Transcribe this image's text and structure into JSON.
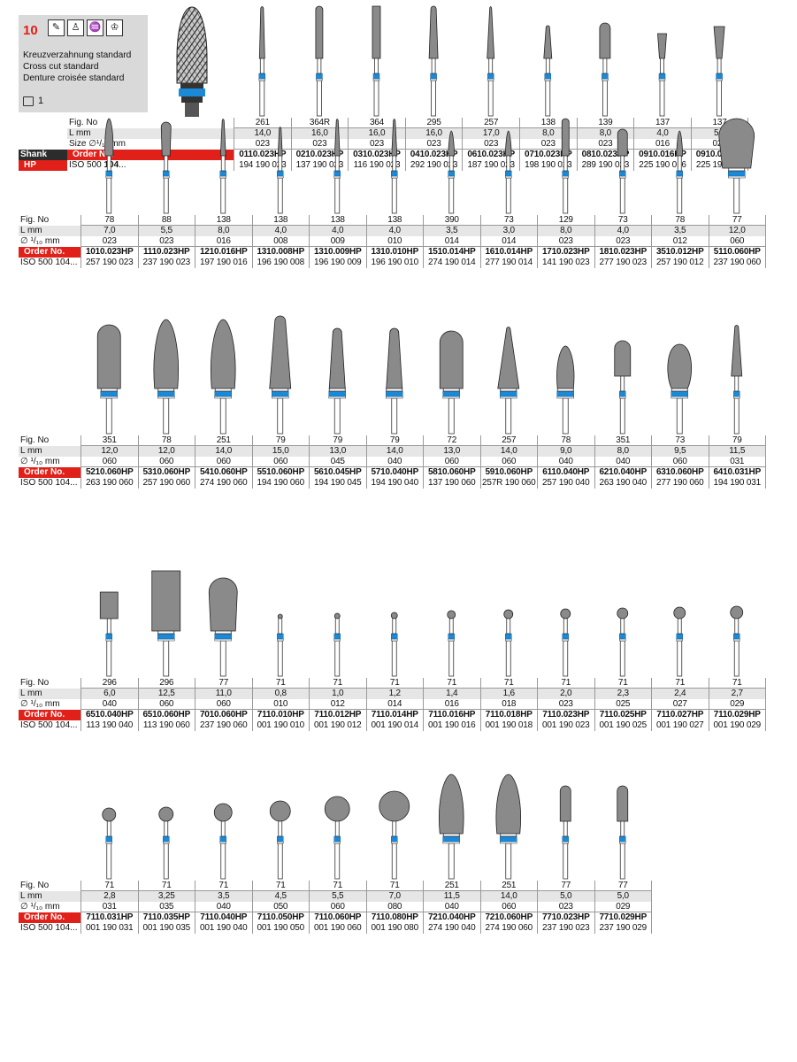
{
  "header": {
    "number": "10",
    "icons": [
      "handpiece-icon",
      "dental-lab-icon",
      "teeth-model-icon",
      "crown-icon"
    ],
    "lines": [
      "Kreuzverzahnung standard",
      "Cross cut standard",
      "Denture croisée standard"
    ],
    "pack_count": "1"
  },
  "labels": {
    "fig": "Fig. No",
    "l": "L mm",
    "size": "Size ∅¹/₁₀ mm",
    "size_short": "∅ ¹/₁₀ mm",
    "order": "Order No.",
    "iso": "ISO 500 104...",
    "iso_first_prefix": "ISO 500 ",
    "iso_first_bold": "104",
    "iso_first_suffix": "...",
    "shank": "Shank",
    "hp": "HP"
  },
  "colors": {
    "ring": "#1a8ad8",
    "order_red": "#e02019",
    "bur_fill": "#8a8a8a",
    "cell_gray": "#e6e6e6"
  },
  "rows": [
    {
      "fig": [
        "261",
        "364R",
        "364",
        "295",
        "257",
        "138",
        "139",
        "137",
        "137"
      ],
      "l": [
        "14,0",
        "16,0",
        "16,0",
        "16,0",
        "17,0",
        "8,0",
        "8,0",
        "4,0",
        "5,5"
      ],
      "size": [
        "023",
        "023",
        "023",
        "023",
        "023",
        "023",
        "023",
        "016",
        "023"
      ],
      "order": [
        "0110.023HP",
        "0210.023HP",
        "0310.023HP",
        "0410.023HP",
        "0610.023HP",
        "0710.023HP",
        "0810.023HP",
        "0910.016HP",
        "0910.023HP"
      ],
      "iso": [
        "194 190 023",
        "137 190 023",
        "116 190 023",
        "292 190 023",
        "187 190 023",
        "198 190 023",
        "289 190 023",
        "225 190 016",
        "225 190 023"
      ],
      "shapes": [
        "taper-thin",
        "cyl-round",
        "cyl",
        "taper-round",
        "taper-long",
        "taper-short",
        "bullet",
        "inv-cone",
        "inv-cone-l"
      ]
    },
    {
      "fig": [
        "78",
        "88",
        "138",
        "138",
        "138",
        "138",
        "390",
        "73",
        "129",
        "73",
        "78",
        "77"
      ],
      "l": [
        "7,0",
        "5,5",
        "8,0",
        "4,0",
        "4,0",
        "4,0",
        "3,5",
        "3,0",
        "8,0",
        "4,0",
        "3,5",
        "12,0"
      ],
      "size": [
        "023",
        "023",
        "016",
        "008",
        "009",
        "010",
        "014",
        "014",
        "023",
        "023",
        "012",
        "060"
      ],
      "order": [
        "1010.023HP",
        "1110.023HP",
        "1210.016HP",
        "1310.008HP",
        "1310.009HP",
        "1310.010HP",
        "1510.014HP",
        "1610.014HP",
        "1710.023HP",
        "1810.023HP",
        "3510.012HP",
        "5110.060HP"
      ],
      "iso": [
        "257 190 023",
        "237 190 023",
        "197 190 016",
        "196 190 008",
        "196 190 009",
        "196 190 010",
        "274 190 014",
        "277 190 014",
        "141 190 023",
        "277 190 023",
        "257 190 012",
        "237 190 060"
      ],
      "shapes": [
        "flame",
        "pear",
        "needle",
        "needle-s",
        "needle",
        "needle",
        "flame-s",
        "flame-s",
        "cyl-round",
        "egg",
        "flame-s",
        "big-pear"
      ]
    },
    {
      "fig": [
        "351",
        "78",
        "251",
        "79",
        "79",
        "79",
        "72",
        "257",
        "78",
        "351",
        "73",
        "79"
      ],
      "l": [
        "12,0",
        "12,0",
        "14,0",
        "15,0",
        "13,0",
        "14,0",
        "13,0",
        "14,0",
        "9,0",
        "8,0",
        "9,5",
        "11,5"
      ],
      "size": [
        "060",
        "060",
        "060",
        "060",
        "045",
        "040",
        "060",
        "060",
        "040",
        "040",
        "060",
        "031"
      ],
      "order": [
        "5210.060HP",
        "5310.060HP",
        "5410.060HP",
        "5510.060HP",
        "5610.045HP",
        "5710.040HP",
        "5810.060HP",
        "5910.060HP",
        "6110.040HP",
        "6210.040HP",
        "6310.060HP",
        "6410.031HP"
      ],
      "iso": [
        "263 190 060",
        "257 190 060",
        "274 190 060",
        "194 190 060",
        "194 190 045",
        "194 190 040",
        "137 190 060",
        "257R 190 060",
        "257 190 040",
        "263 190 040",
        "277 190 060",
        "194 190 031"
      ],
      "shapes": [
        "bullet-w",
        "flame-w",
        "flame-w",
        "taper-w",
        "taper-m",
        "taper-m",
        "cyl-w",
        "cone-w",
        "flame-m",
        "bullet-m",
        "oval-w",
        "taper-n"
      ]
    },
    {
      "fig": [
        "296",
        "296",
        "77",
        "71",
        "71",
        "71",
        "71",
        "71",
        "71",
        "71",
        "71",
        "71"
      ],
      "l": [
        "6,0",
        "12,5",
        "11,0",
        "0,8",
        "1,0",
        "1,2",
        "1,4",
        "1,6",
        "2,0",
        "2,3",
        "2,4",
        "2,7"
      ],
      "size": [
        "040",
        "060",
        "060",
        "010",
        "012",
        "014",
        "016",
        "018",
        "023",
        "025",
        "027",
        "029"
      ],
      "order": [
        "6510.040HP",
        "6510.060HP",
        "7010.060HP",
        "7110.010HP",
        "7110.012HP",
        "7110.014HP",
        "7110.016HP",
        "7110.018HP",
        "7110.023HP",
        "7110.025HP",
        "7110.027HP",
        "7110.029HP"
      ],
      "iso": [
        "113 190 040",
        "113 190 060",
        "237 190 060",
        "001 190 010",
        "001 190 012",
        "001 190 014",
        "001 190 016",
        "001 190 018",
        "001 190 023",
        "001 190 025",
        "001 190 027",
        "001 190 029"
      ],
      "shapes": [
        "cyl-s",
        "cyl-big",
        "pear-big",
        "ball-1",
        "ball-2",
        "ball-3",
        "ball-4",
        "ball-5",
        "ball-6",
        "ball-7",
        "ball-8",
        "ball-9"
      ]
    },
    {
      "fig": [
        "71",
        "71",
        "71",
        "71",
        "71",
        "71",
        "251",
        "251",
        "77",
        "77"
      ],
      "l": [
        "2,8",
        "3,25",
        "3,5",
        "4,5",
        "5,5",
        "7,0",
        "11,5",
        "14,0",
        "5,0",
        "5,0"
      ],
      "size": [
        "031",
        "035",
        "040",
        "050",
        "060",
        "080",
        "040",
        "060",
        "023",
        "029"
      ],
      "order": [
        "7110.031HP",
        "7110.035HP",
        "7110.040HP",
        "7110.050HP",
        "7110.060HP",
        "7110.080HP",
        "7210.040HP",
        "7210.060HP",
        "7710.023HP",
        "7710.029HP"
      ],
      "iso": [
        "001 190 031",
        "001 190 035",
        "001 190 040",
        "001 190 050",
        "001 190 060",
        "001 190 080",
        "274 190 040",
        "274 190 060",
        "237 190 023",
        "237 190 029"
      ],
      "shapes": [
        "ball-10",
        "ball-11",
        "ball-12",
        "ball-13",
        "ball-14",
        "ball-15",
        "flame-w",
        "flame-w",
        "pear-n",
        "pear-n"
      ]
    }
  ]
}
